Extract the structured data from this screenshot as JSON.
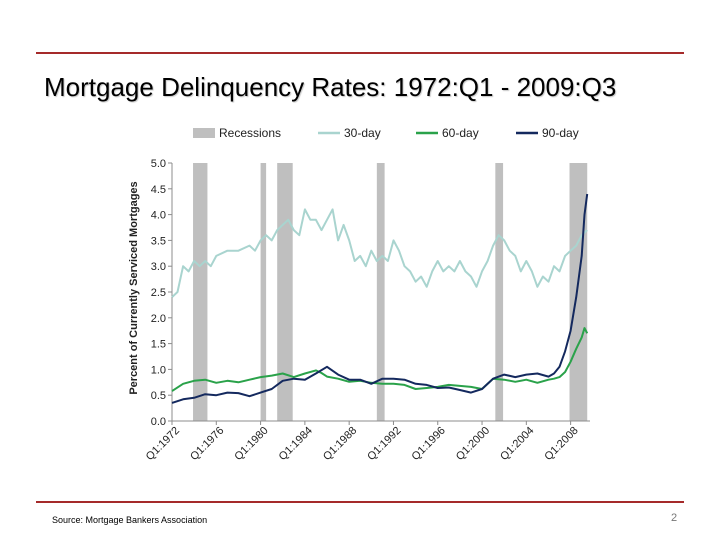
{
  "slide": {
    "title": "Mortgage Delinquency Rates: 1972:Q1 - 2009:Q3",
    "source": "Source:  Mortgage Bankers Association",
    "page_number": "2"
  },
  "colors": {
    "accent_rule": "#a52a2a",
    "recessions": "#bfbfbf",
    "thirty_day": "#a9d4cf",
    "sixty_day": "#2aa24a",
    "ninety_day": "#14295e"
  },
  "chart_data": {
    "type": "line",
    "title": "",
    "xlabel": "",
    "ylabel": "Percent of Currently Serviced Mortgages",
    "ylim": [
      0,
      5
    ],
    "yticks": [
      "0.0",
      "0.5",
      "1.0",
      "1.5",
      "2.0",
      "2.5",
      "3.0",
      "3.5",
      "4.0",
      "4.5",
      "5.0"
    ],
    "xlim": [
      1972.0,
      2009.75
    ],
    "xticks": [
      {
        "x": 1972,
        "label": "Q1:1972"
      },
      {
        "x": 1976,
        "label": "Q1:1976"
      },
      {
        "x": 1980,
        "label": "Q1:1980"
      },
      {
        "x": 1984,
        "label": "Q1:1984"
      },
      {
        "x": 1988,
        "label": "Q1:1988"
      },
      {
        "x": 1992,
        "label": "Q1:1992"
      },
      {
        "x": 1996,
        "label": "Q1:1996"
      },
      {
        "x": 2000,
        "label": "Q1:2000"
      },
      {
        "x": 2004,
        "label": "Q1:2004"
      },
      {
        "x": 2008,
        "label": "Q1:2008"
      }
    ],
    "legend": [
      "Recessions",
      "30-day",
      "60-day",
      "90-day"
    ],
    "legend_position": "top",
    "grid": false,
    "recessions": [
      [
        1973.9,
        1975.2
      ],
      [
        1980.0,
        1980.5
      ],
      [
        1981.5,
        1982.9
      ],
      [
        1990.5,
        1991.2
      ],
      [
        2001.2,
        2001.9
      ],
      [
        2007.9,
        2009.5
      ]
    ],
    "series": [
      {
        "name": "30-day",
        "x": [
          1972.0,
          1972.5,
          1973.0,
          1973.5,
          1974.0,
          1974.5,
          1975.0,
          1975.5,
          1976.0,
          1977.0,
          1978.0,
          1979.0,
          1979.5,
          1980.0,
          1980.5,
          1981.0,
          1981.5,
          1982.0,
          1982.5,
          1983.0,
          1983.5,
          1984.0,
          1984.5,
          1985.0,
          1985.5,
          1986.0,
          1986.5,
          1987.0,
          1987.5,
          1988.0,
          1988.5,
          1989.0,
          1989.5,
          1990.0,
          1990.5,
          1991.0,
          1991.5,
          1992.0,
          1992.5,
          1993.0,
          1993.5,
          1994.0,
          1994.5,
          1995.0,
          1995.5,
          1996.0,
          1996.5,
          1997.0,
          1997.5,
          1998.0,
          1998.5,
          1999.0,
          1999.5,
          2000.0,
          2000.5,
          2001.0,
          2001.5,
          2002.0,
          2002.5,
          2003.0,
          2003.5,
          2004.0,
          2004.5,
          2005.0,
          2005.5,
          2006.0,
          2006.5,
          2007.0,
          2007.5,
          2008.0,
          2008.5,
          2009.0,
          2009.5
        ],
        "y": [
          2.4,
          2.5,
          3.0,
          2.9,
          3.1,
          3.0,
          3.1,
          3.0,
          3.2,
          3.3,
          3.3,
          3.4,
          3.3,
          3.5,
          3.6,
          3.5,
          3.7,
          3.8,
          3.9,
          3.7,
          3.6,
          4.1,
          3.9,
          3.9,
          3.7,
          3.9,
          4.1,
          3.5,
          3.8,
          3.5,
          3.1,
          3.2,
          3.0,
          3.3,
          3.1,
          3.2,
          3.1,
          3.5,
          3.3,
          3.0,
          2.9,
          2.7,
          2.8,
          2.6,
          2.9,
          3.1,
          2.9,
          3.0,
          2.9,
          3.1,
          2.9,
          2.8,
          2.6,
          2.9,
          3.1,
          3.4,
          3.6,
          3.5,
          3.3,
          3.2,
          2.9,
          3.1,
          2.9,
          2.6,
          2.8,
          2.7,
          3.0,
          2.9,
          3.2,
          3.3,
          3.4,
          3.6,
          3.7
        ]
      },
      {
        "name": "60-day",
        "x": [
          1972.0,
          1973.0,
          1974.0,
          1975.0,
          1976.0,
          1977.0,
          1978.0,
          1979.0,
          1980.0,
          1981.0,
          1982.0,
          1983.0,
          1984.0,
          1985.0,
          1985.5,
          1986.0,
          1987.0,
          1988.0,
          1989.0,
          1990.0,
          1991.0,
          1992.0,
          1993.0,
          1994.0,
          1995.0,
          1996.0,
          1997.0,
          1998.0,
          1999.0,
          2000.0,
          2001.0,
          2002.0,
          2003.0,
          2004.0,
          2005.0,
          2006.0,
          2006.5,
          2007.0,
          2007.5,
          2008.0,
          2008.5,
          2009.0,
          2009.25,
          2009.5
        ],
        "y": [
          0.58,
          0.72,
          0.78,
          0.8,
          0.74,
          0.78,
          0.75,
          0.8,
          0.85,
          0.88,
          0.92,
          0.85,
          0.92,
          0.98,
          0.93,
          0.86,
          0.82,
          0.76,
          0.78,
          0.74,
          0.72,
          0.72,
          0.7,
          0.62,
          0.64,
          0.66,
          0.7,
          0.68,
          0.66,
          0.62,
          0.82,
          0.8,
          0.76,
          0.8,
          0.74,
          0.8,
          0.82,
          0.85,
          0.95,
          1.15,
          1.4,
          1.62,
          1.8,
          1.7
        ]
      },
      {
        "name": "90-day",
        "x": [
          1972.0,
          1973.0,
          1974.0,
          1975.0,
          1976.0,
          1977.0,
          1978.0,
          1979.0,
          1980.0,
          1981.0,
          1982.0,
          1983.0,
          1984.0,
          1985.0,
          1986.0,
          1987.0,
          1988.0,
          1989.0,
          1990.0,
          1991.0,
          1992.0,
          1993.0,
          1994.0,
          1995.0,
          1996.0,
          1997.0,
          1998.0,
          1999.0,
          2000.0,
          2001.0,
          2002.0,
          2003.0,
          2004.0,
          2005.0,
          2006.0,
          2006.5,
          2007.0,
          2007.5,
          2008.0,
          2008.5,
          2009.0,
          2009.25,
          2009.5
        ],
        "y": [
          0.35,
          0.42,
          0.45,
          0.52,
          0.5,
          0.55,
          0.54,
          0.48,
          0.55,
          0.62,
          0.78,
          0.82,
          0.8,
          0.92,
          1.05,
          0.9,
          0.8,
          0.8,
          0.72,
          0.82,
          0.82,
          0.8,
          0.72,
          0.7,
          0.64,
          0.65,
          0.6,
          0.55,
          0.62,
          0.82,
          0.9,
          0.85,
          0.9,
          0.92,
          0.86,
          0.92,
          1.05,
          1.35,
          1.75,
          2.4,
          3.2,
          4.0,
          4.4
        ]
      }
    ]
  }
}
